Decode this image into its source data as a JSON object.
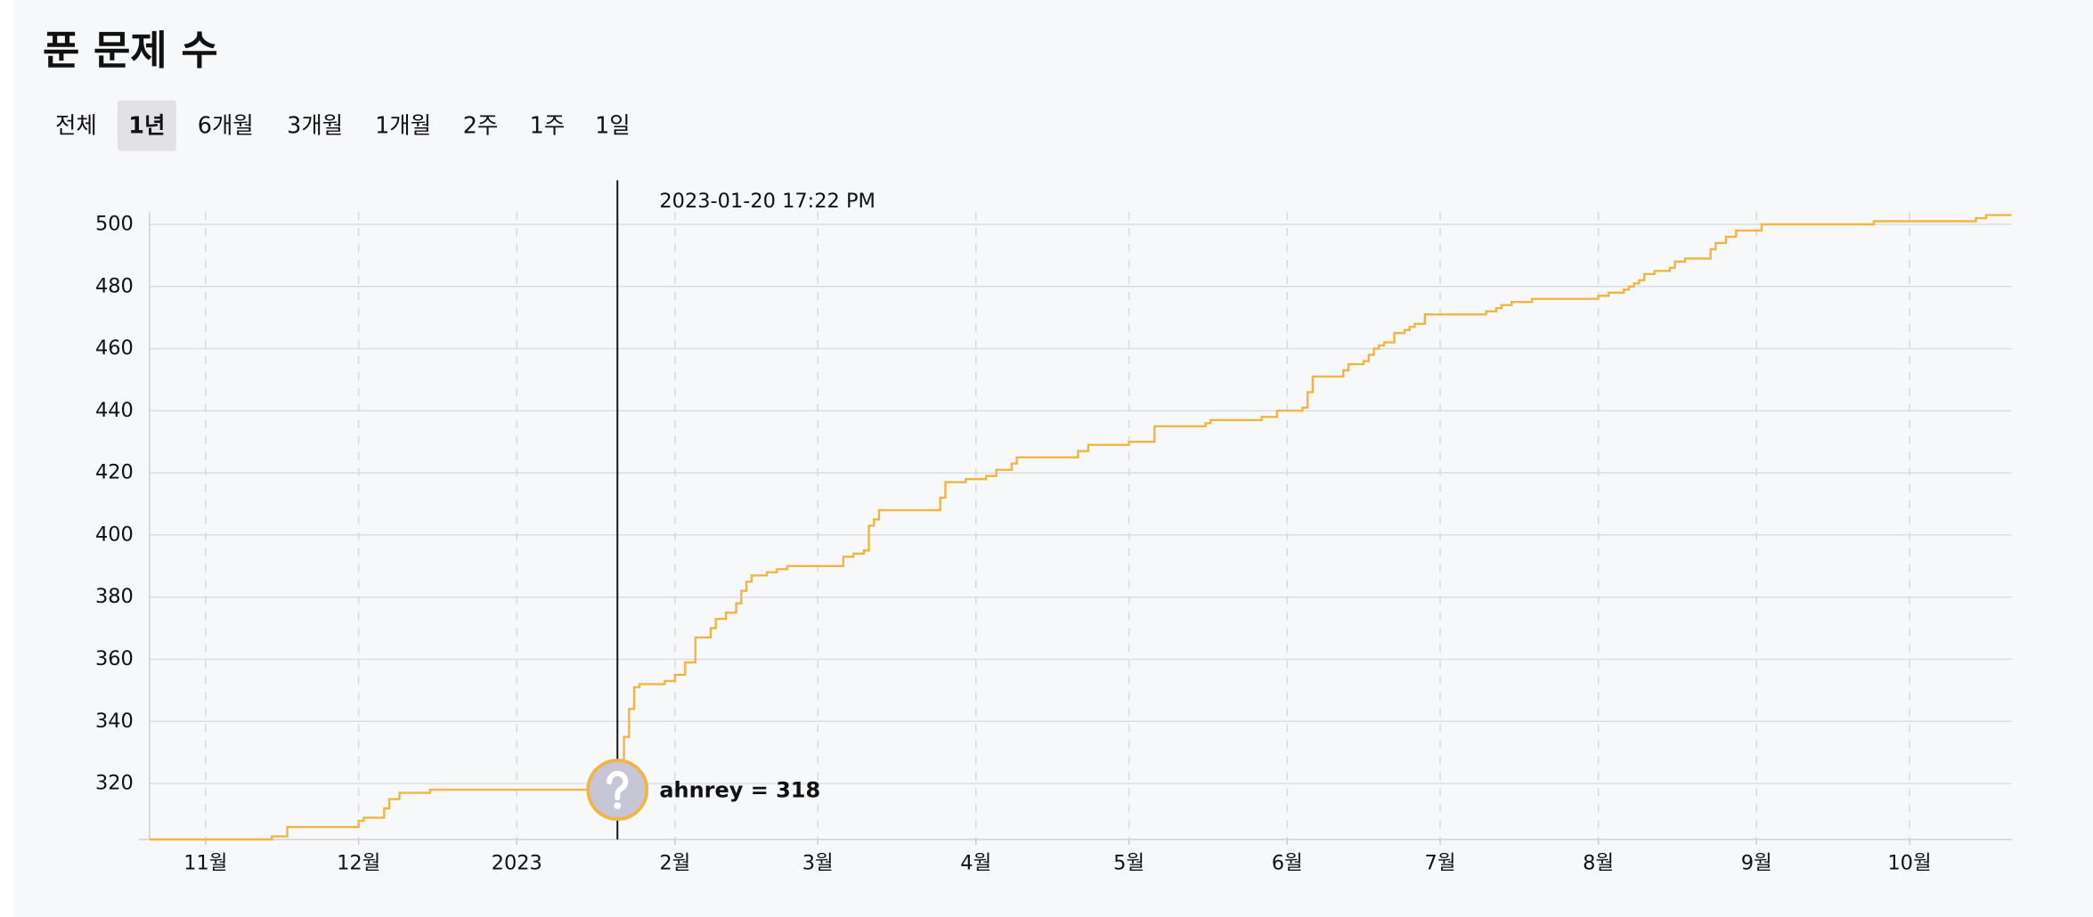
{
  "title": "푼 문제 수",
  "tabs": [
    "전체",
    "1년",
    "6개월",
    "3개월",
    "1개월",
    "2주",
    "1주",
    "1일"
  ],
  "selected_tab": 1,
  "chart_data": {
    "type": "step-line",
    "x": [
      "2022-10-21",
      "2022-11-14",
      "2022-11-17",
      "2022-12-01",
      "2022-12-02",
      "2022-12-06",
      "2022-12-07",
      "2022-12-09",
      "2022-12-15",
      "2023-01-22",
      "2023-01-23",
      "2023-01-24",
      "2023-01-25",
      "2023-01-30",
      "2023-02-01",
      "2023-02-03",
      "2023-02-05",
      "2023-02-08",
      "2023-02-09",
      "2023-02-11",
      "2023-02-13",
      "2023-02-14",
      "2023-02-15",
      "2023-02-16",
      "2023-02-19",
      "2023-02-21",
      "2023-02-23",
      "2023-03-06",
      "2023-03-08",
      "2023-03-10",
      "2023-03-11",
      "2023-03-12",
      "2023-03-13",
      "2023-03-25",
      "2023-03-26",
      "2023-03-30",
      "2023-04-03",
      "2023-04-05",
      "2023-04-08",
      "2023-04-09",
      "2023-04-21",
      "2023-04-23",
      "2023-05-01",
      "2023-05-06",
      "2023-05-16",
      "2023-05-17",
      "2023-05-27",
      "2023-05-30",
      "2023-06-04",
      "2023-06-05",
      "2023-06-06",
      "2023-06-12",
      "2023-06-13",
      "2023-06-16",
      "2023-06-17",
      "2023-06-18",
      "2023-06-19",
      "2023-06-20",
      "2023-06-22",
      "2023-06-24",
      "2023-06-25",
      "2023-06-26",
      "2023-06-28",
      "2023-07-10",
      "2023-07-12",
      "2023-07-13",
      "2023-07-15",
      "2023-07-19",
      "2023-08-01",
      "2023-08-03",
      "2023-08-06",
      "2023-08-07",
      "2023-08-08",
      "2023-08-09",
      "2023-08-10",
      "2023-08-12",
      "2023-08-15",
      "2023-08-16",
      "2023-08-18",
      "2023-08-23",
      "2023-08-24",
      "2023-08-26",
      "2023-08-28",
      "2023-09-02",
      "2023-09-24",
      "2023-10-14",
      "2023-10-16",
      "2023-10-21"
    ],
    "series": [
      {
        "color": "#f2b544",
        "values": [
          302,
          303,
          306,
          308,
          309,
          312,
          315,
          317,
          318,
          335,
          344,
          351,
          352,
          353,
          355,
          359,
          367,
          370,
          373,
          375,
          378,
          382,
          385,
          387,
          388,
          389,
          390,
          393,
          394,
          395,
          403,
          405,
          408,
          412,
          417,
          418,
          419,
          421,
          423,
          425,
          427,
          429,
          430,
          435,
          436,
          437,
          438,
          440,
          441,
          446,
          451,
          453,
          455,
          456,
          458,
          460,
          461,
          462,
          465,
          466,
          467,
          468,
          471,
          472,
          473,
          474,
          475,
          476,
          477,
          478,
          479,
          480,
          481,
          482,
          484,
          485,
          486,
          488,
          489,
          492,
          494,
          496,
          498,
          500,
          501,
          502,
          503,
          503
        ]
      }
    ],
    "xlim": [
      "2022-10-21",
      "2023-10-21"
    ],
    "xticks": [
      {
        "value": "2022-11-01",
        "label": "11월"
      },
      {
        "value": "2022-12-01",
        "label": "12월"
      },
      {
        "value": "2023-01-01",
        "label": "2023"
      },
      {
        "value": "2023-02-01",
        "label": "2월"
      },
      {
        "value": "2023-03-01",
        "label": "3월"
      },
      {
        "value": "2023-04-01",
        "label": "4월"
      },
      {
        "value": "2023-05-01",
        "label": "5월"
      },
      {
        "value": "2023-06-01",
        "label": "6월"
      },
      {
        "value": "2023-07-01",
        "label": "7월"
      },
      {
        "value": "2023-08-01",
        "label": "8월"
      },
      {
        "value": "2023-09-01",
        "label": "9월"
      },
      {
        "value": "2023-10-01",
        "label": "10월"
      }
    ],
    "ylim": [
      302,
      504
    ],
    "yticks": [
      320,
      340,
      360,
      380,
      400,
      420,
      440,
      460,
      480,
      500
    ],
    "grid": true,
    "tooltip": {
      "x": "2023-01-20T17:22",
      "time": "2023-01-20 17:22 PM",
      "value": 318,
      "label": "ahnrey = 318"
    }
  }
}
